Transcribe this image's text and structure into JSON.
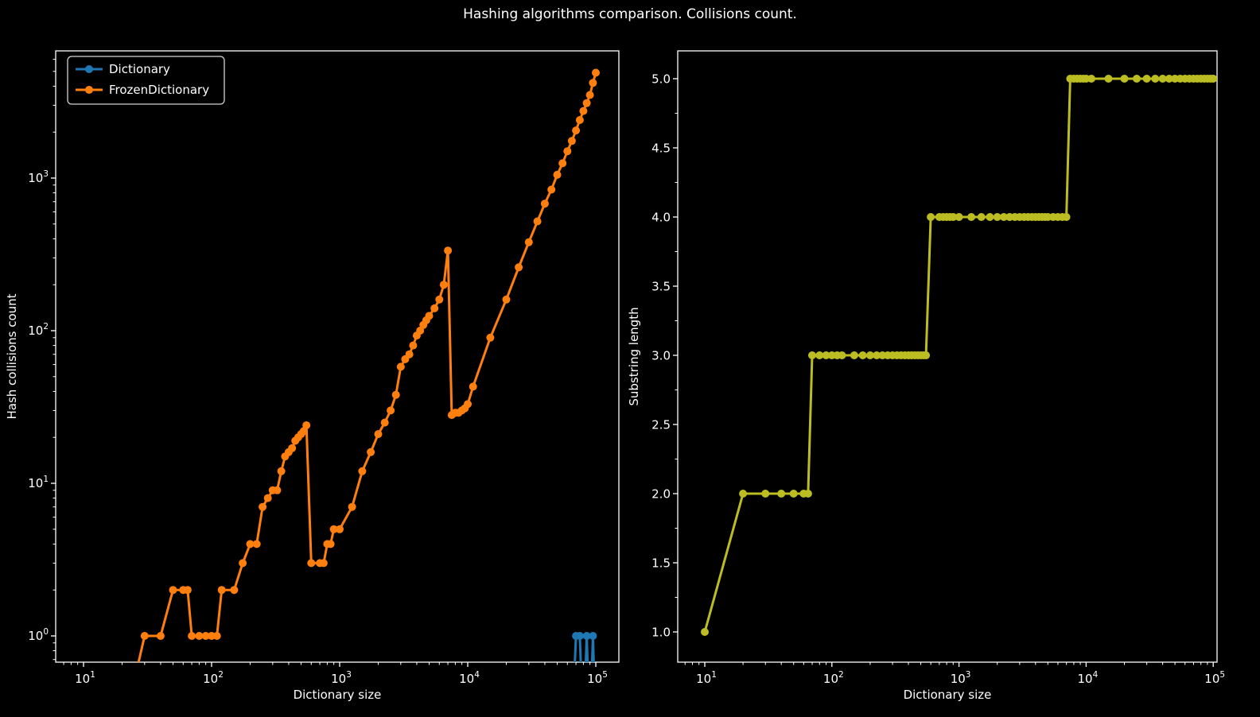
{
  "title": "Hashing algorithms comparison. Collisions count.",
  "colors": {
    "background": "#000000",
    "foreground": "#ffffff",
    "dictionary": "#1f77b4",
    "frozen_dictionary": "#ff7f0e",
    "substring": "#bcbd22",
    "legend_edge": "#d4d4d4"
  },
  "chart_data": [
    {
      "type": "line",
      "name": "hash-collisions-chart",
      "title": "",
      "xlabel": "Dictionary size",
      "ylabel": "Hash collisions count",
      "xscale": "log",
      "yscale": "log",
      "xticks": [
        10,
        100,
        1000,
        10000,
        100000
      ],
      "yticks": [
        1,
        10,
        100,
        1000
      ],
      "xlim": [
        6,
        150000
      ],
      "ylim": [
        0.65,
        6800
      ],
      "grid": false,
      "legend": {
        "position": "upper left",
        "entries": [
          "Dictionary",
          "FrozenDictionary"
        ]
      },
      "x": [
        10,
        20,
        30,
        40,
        50,
        60,
        65,
        70,
        80,
        90,
        100,
        110,
        120,
        150,
        175,
        200,
        225,
        250,
        275,
        300,
        325,
        350,
        375,
        400,
        425,
        450,
        475,
        500,
        525,
        550,
        600,
        700,
        750,
        800,
        850,
        900,
        1000,
        1250,
        1500,
        1750,
        2000,
        2250,
        2500,
        2750,
        3000,
        3250,
        3500,
        3750,
        4000,
        4250,
        4500,
        4750,
        5000,
        5500,
        6000,
        6500,
        7000,
        7500,
        8000,
        8500,
        9000,
        9500,
        10000,
        11000,
        15000,
        20000,
        25000,
        30000,
        35000,
        40000,
        45000,
        50000,
        55000,
        60000,
        65000,
        70000,
        75000,
        80000,
        85000,
        90000,
        95000,
        100000
      ],
      "series": [
        {
          "name": "Dictionary",
          "color": "#1f77b4",
          "y": [
            0,
            0,
            0,
            0,
            0,
            0,
            0,
            0,
            0,
            0,
            0,
            0,
            0,
            0,
            0,
            0,
            0,
            0,
            0,
            0,
            0,
            0,
            0,
            0,
            0,
            0,
            0,
            0,
            0,
            0,
            0,
            0,
            0,
            0,
            0,
            0,
            0,
            0,
            0,
            0,
            0,
            0,
            0,
            0,
            0,
            0,
            0,
            0,
            0,
            0,
            0,
            0,
            0,
            0,
            0,
            0,
            0,
            0,
            0,
            0,
            0,
            0,
            0,
            0,
            0,
            0,
            0,
            0,
            0,
            0,
            0,
            0,
            0,
            0,
            0,
            1,
            1,
            0,
            1,
            0,
            1,
            0
          ]
        },
        {
          "name": "FrozenDictionary",
          "color": "#ff7f0e",
          "y": [
            0,
            0,
            1,
            1,
            2,
            2,
            2,
            1,
            1,
            1,
            1,
            1,
            2,
            2,
            3,
            4,
            4,
            7,
            8,
            9,
            9,
            12,
            15,
            16,
            17,
            19,
            20,
            21,
            22,
            24,
            3,
            3,
            3,
            4,
            4,
            5,
            5,
            7,
            12,
            16,
            21,
            25,
            30,
            38,
            58,
            65,
            70,
            80,
            93,
            100,
            109,
            117,
            125,
            140,
            160,
            200,
            335,
            28,
            29,
            29,
            30,
            31,
            33,
            43,
            90,
            160,
            260,
            380,
            520,
            680,
            840,
            1050,
            1250,
            1500,
            1750,
            2050,
            2400,
            2750,
            3100,
            3500,
            4200,
            4900
          ]
        }
      ]
    },
    {
      "type": "line",
      "name": "substring-length-chart",
      "title": "",
      "xlabel": "Dictionary size",
      "ylabel": "Substring length",
      "xscale": "log",
      "yscale": "linear",
      "xticks": [
        10,
        100,
        1000,
        10000,
        100000
      ],
      "yticks": [
        1.0,
        1.5,
        2.0,
        2.5,
        3.0,
        3.5,
        4.0,
        4.5,
        5.0
      ],
      "xlim": [
        6,
        150000
      ],
      "ylim": [
        0.8,
        5.2
      ],
      "grid": false,
      "x": [
        10,
        20,
        30,
        40,
        50,
        60,
        65,
        70,
        80,
        90,
        100,
        110,
        120,
        150,
        175,
        200,
        225,
        250,
        275,
        300,
        325,
        350,
        375,
        400,
        425,
        450,
        475,
        500,
        525,
        550,
        600,
        700,
        750,
        800,
        850,
        900,
        1000,
        1250,
        1500,
        1750,
        2000,
        2250,
        2500,
        2750,
        3000,
        3250,
        3500,
        3750,
        4000,
        4250,
        4500,
        4750,
        5000,
        5500,
        6000,
        6500,
        7000,
        7500,
        8000,
        8500,
        9000,
        9500,
        10000,
        11000,
        15000,
        20000,
        25000,
        30000,
        35000,
        40000,
        45000,
        50000,
        55000,
        60000,
        65000,
        70000,
        75000,
        80000,
        85000,
        90000,
        95000,
        100000
      ],
      "series": [
        {
          "name": "FrozenDictionary",
          "color": "#bcbd22",
          "y": [
            1,
            2,
            2,
            2,
            2,
            2,
            2,
            3,
            3,
            3,
            3,
            3,
            3,
            3,
            3,
            3,
            3,
            3,
            3,
            3,
            3,
            3,
            3,
            3,
            3,
            3,
            3,
            3,
            3,
            3,
            4,
            4,
            4,
            4,
            4,
            4,
            4,
            4,
            4,
            4,
            4,
            4,
            4,
            4,
            4,
            4,
            4,
            4,
            4,
            4,
            4,
            4,
            4,
            4,
            4,
            4,
            4,
            5,
            5,
            5,
            5,
            5,
            5,
            5,
            5,
            5,
            5,
            5,
            5,
            5,
            5,
            5,
            5,
            5,
            5,
            5,
            5,
            5,
            5,
            5,
            5,
            5
          ]
        }
      ]
    }
  ]
}
